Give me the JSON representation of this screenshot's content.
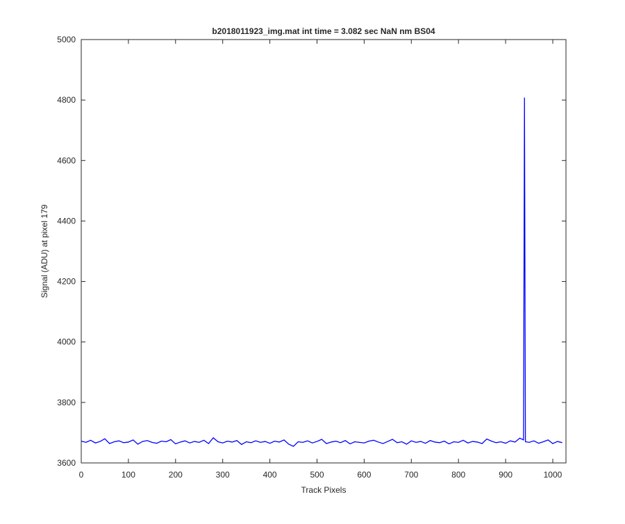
{
  "chart_data": {
    "type": "line",
    "title": "b2018011923_img.mat int time = 3.082 sec  NaN nm BS04",
    "x_label": "Track Pixels",
    "y_label": "Signal (ADU) at pixel 179",
    "x": [
      0,
      10,
      20,
      30,
      40,
      50,
      60,
      70,
      80,
      90,
      100,
      110,
      120,
      130,
      140,
      150,
      160,
      170,
      180,
      190,
      200,
      210,
      220,
      230,
      240,
      250,
      260,
      270,
      280,
      290,
      300,
      310,
      320,
      330,
      340,
      350,
      360,
      370,
      380,
      390,
      400,
      410,
      420,
      430,
      440,
      450,
      460,
      470,
      480,
      490,
      500,
      510,
      520,
      530,
      540,
      550,
      560,
      570,
      580,
      590,
      600,
      610,
      620,
      630,
      640,
      650,
      660,
      670,
      680,
      690,
      700,
      710,
      720,
      730,
      740,
      750,
      760,
      770,
      780,
      790,
      800,
      810,
      820,
      830,
      840,
      850,
      860,
      870,
      880,
      890,
      900,
      910,
      920,
      930,
      938,
      940,
      942,
      950,
      960,
      970,
      980,
      990,
      1000,
      1010,
      1020
    ],
    "series": [
      {
        "name": "signal",
        "color": "#0000ff",
        "values": [
          3672,
          3668,
          3675,
          3666,
          3671,
          3680,
          3664,
          3670,
          3673,
          3667,
          3669,
          3676,
          3662,
          3671,
          3674,
          3668,
          3665,
          3672,
          3670,
          3677,
          3663,
          3669,
          3673,
          3666,
          3671,
          3668,
          3675,
          3664,
          3683,
          3670,
          3666,
          3672,
          3669,
          3674,
          3661,
          3670,
          3667,
          3673,
          3668,
          3671,
          3665,
          3672,
          3669,
          3676,
          3662,
          3655,
          3670,
          3668,
          3673,
          3666,
          3671,
          3678,
          3664,
          3669,
          3672,
          3667,
          3674,
          3663,
          3670,
          3668,
          3666,
          3672,
          3675,
          3669,
          3664,
          3671,
          3678,
          3667,
          3670,
          3662,
          3673,
          3668,
          3671,
          3665,
          3674,
          3669,
          3667,
          3672,
          3663,
          3670,
          3668,
          3675,
          3666,
          3671,
          3669,
          3664,
          3679,
          3672,
          3667,
          3670,
          3665,
          3673,
          3669,
          3682,
          3676,
          4808,
          3670,
          3668,
          3673,
          3665,
          3670,
          3676,
          3664,
          3671,
          3667
        ]
      }
    ],
    "xlim": [
      0,
      1028
    ],
    "ylim": [
      3600,
      5000
    ],
    "xticks": [
      0,
      100,
      200,
      300,
      400,
      500,
      600,
      700,
      800,
      900,
      1000
    ],
    "yticks": [
      3600,
      3800,
      4000,
      4200,
      4400,
      4600,
      4800,
      5000
    ],
    "grid": false
  }
}
